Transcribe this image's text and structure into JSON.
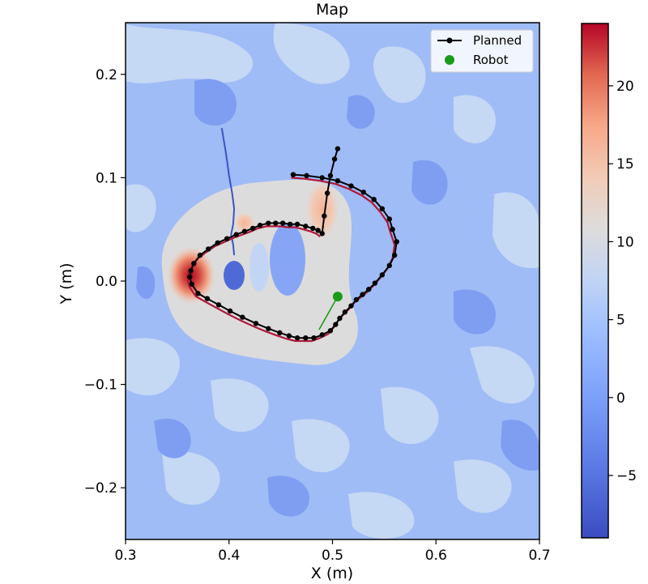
{
  "chart_data": {
    "type": "contour_map_with_trajectory",
    "title": "Map",
    "xlabel": "X (m)",
    "ylabel": "Y (m)",
    "xlim": [
      0.3,
      0.7
    ],
    "ylim": [
      -0.25,
      0.25
    ],
    "xticks": [
      0.3,
      0.4,
      0.5,
      0.6,
      0.7
    ],
    "xtick_labels": [
      "0.3",
      "0.4",
      "0.5",
      "0.6",
      "0.7"
    ],
    "yticks": [
      0.2,
      0.1,
      0.0,
      -0.1,
      -0.2
    ],
    "ytick_labels": [
      "0.2",
      "0.1",
      "0.0",
      "−0.1",
      "−0.2"
    ],
    "colorbar": {
      "range": [
        -9,
        24
      ],
      "ticks": [
        20,
        15,
        10,
        5,
        0,
        -5
      ],
      "tick_labels": [
        "20",
        "15",
        "10",
        "5",
        "0",
        "−5"
      ],
      "colormap": "coolwarm"
    },
    "legend": {
      "placement": "top-right",
      "entries": [
        {
          "label": "Planned",
          "color": "#000000",
          "marker": "line-dot"
        },
        {
          "label": "Robot",
          "color": "#1a9b1a",
          "marker": "dot"
        }
      ]
    },
    "planned_path": [
      [
        0.462,
        0.103
      ],
      [
        0.475,
        0.102
      ],
      [
        0.49,
        0.1
      ],
      [
        0.505,
        0.097
      ],
      [
        0.518,
        0.092
      ],
      [
        0.53,
        0.086
      ],
      [
        0.54,
        0.079
      ],
      [
        0.548,
        0.07
      ],
      [
        0.555,
        0.06
      ],
      [
        0.558,
        0.05
      ],
      [
        0.562,
        0.038
      ],
      [
        0.56,
        0.025
      ],
      [
        0.555,
        0.015
      ],
      [
        0.548,
        0.006
      ],
      [
        0.541,
        -0.002
      ],
      [
        0.535,
        -0.008
      ],
      [
        0.529,
        -0.013
      ],
      [
        0.523,
        -0.018
      ],
      [
        0.518,
        -0.024
      ],
      [
        0.512,
        -0.03
      ],
      [
        0.507,
        -0.036
      ],
      [
        0.503,
        -0.042
      ],
      [
        0.498,
        -0.048
      ],
      [
        0.49,
        -0.052
      ],
      [
        0.482,
        -0.055
      ],
      [
        0.474,
        -0.055
      ],
      [
        0.466,
        -0.055
      ],
      [
        0.458,
        -0.053
      ],
      [
        0.449,
        -0.05
      ],
      [
        0.438,
        -0.046
      ],
      [
        0.426,
        -0.041
      ],
      [
        0.413,
        -0.035
      ],
      [
        0.401,
        -0.029
      ],
      [
        0.39,
        -0.023
      ],
      [
        0.379,
        -0.017
      ],
      [
        0.37,
        -0.012
      ],
      [
        0.364,
        -0.003
      ],
      [
        0.362,
        0.004
      ],
      [
        0.363,
        0.01
      ],
      [
        0.366,
        0.017
      ],
      [
        0.372,
        0.025
      ],
      [
        0.38,
        0.031
      ],
      [
        0.389,
        0.037
      ],
      [
        0.398,
        0.041
      ],
      [
        0.407,
        0.045
      ],
      [
        0.415,
        0.048
      ],
      [
        0.423,
        0.051
      ],
      [
        0.43,
        0.054
      ],
      [
        0.438,
        0.056
      ],
      [
        0.445,
        0.056
      ],
      [
        0.452,
        0.056
      ],
      [
        0.459,
        0.055
      ],
      [
        0.466,
        0.055
      ],
      [
        0.474,
        0.053
      ],
      [
        0.481,
        0.051
      ],
      [
        0.486,
        0.049
      ],
      [
        0.49,
        0.046
      ],
      [
        0.492,
        0.063
      ],
      [
        0.495,
        0.085
      ],
      [
        0.498,
        0.102
      ],
      [
        0.502,
        0.118
      ],
      [
        0.505,
        0.128
      ]
    ],
    "reference_path": [
      [
        0.393,
        0.148
      ],
      [
        0.397,
        0.124
      ],
      [
        0.4,
        0.102
      ],
      [
        0.403,
        0.085
      ],
      [
        0.405,
        0.07
      ],
      [
        0.404,
        0.055
      ],
      [
        0.402,
        0.045
      ],
      [
        0.404,
        0.035
      ],
      [
        0.405,
        0.025
      ]
    ],
    "robot_position": [
      0.505,
      -0.015
    ],
    "robot_heading_line": [
      [
        0.505,
        -0.015
      ],
      [
        0.487,
        -0.047
      ]
    ]
  }
}
